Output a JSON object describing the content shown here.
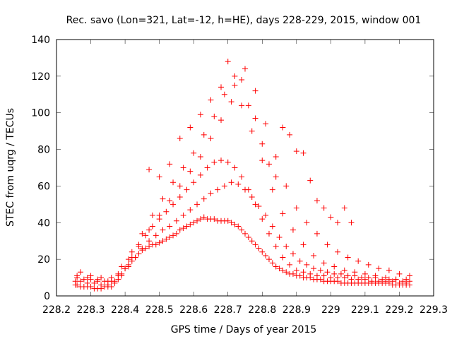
{
  "chart_data": {
    "type": "scatter",
    "title": "Rec. savo (Lon=321, Lat=-12, h=HE), days 228-229, 2015, window 001",
    "xlabel": "GPS time / Days of year 2015",
    "ylabel": "STEC from uqrg / TECUs",
    "xlim": [
      228.2,
      229.3
    ],
    "ylim": [
      0,
      140
    ],
    "xticks": [
      "228.2",
      "228.3",
      "228.4",
      "228.5",
      "228.6",
      "228.7",
      "228.8",
      "228.9",
      "229",
      "229.1",
      "229.2",
      "229.3"
    ],
    "yticks": [
      "0",
      "20",
      "40",
      "60",
      "80",
      "100",
      "120",
      "140"
    ],
    "grid": false,
    "legend": "none",
    "marker": "plus",
    "color": "#ff0000",
    "series": [
      {
        "x": [
          228.255,
          228.26,
          228.27,
          228.28,
          228.29,
          228.3,
          228.31,
          228.32,
          228.33,
          228.34,
          228.35,
          228.36,
          228.37,
          228.38,
          228.39,
          228.4,
          228.41,
          228.42,
          228.43,
          228.44,
          228.45,
          228.46,
          228.47,
          228.48,
          228.49,
          228.5,
          228.51,
          228.52,
          228.53,
          228.54,
          228.55,
          228.56,
          228.57,
          228.58,
          228.59,
          228.6,
          228.61,
          228.62,
          228.63,
          228.64,
          228.65,
          228.66,
          228.67,
          228.68,
          228.69,
          228.7,
          228.71,
          228.72,
          228.73,
          228.74,
          228.75,
          228.76,
          228.77,
          228.78,
          228.79,
          228.8,
          228.81,
          228.82,
          228.83,
          228.84,
          228.85,
          228.86,
          228.87,
          228.88,
          228.89,
          228.9,
          228.91,
          228.92,
          228.93,
          228.94,
          228.95,
          228.96,
          228.97,
          228.98,
          228.99,
          229.0,
          229.01,
          229.02,
          229.03,
          229.04,
          229.05,
          229.06,
          229.07,
          229.08,
          229.09,
          229.1,
          229.11,
          229.12,
          229.13,
          229.14,
          229.15,
          229.16,
          229.17,
          229.18,
          229.19,
          229.2,
          229.21,
          229.22,
          229.23
        ],
        "y": [
          6,
          6,
          5,
          5,
          5,
          5,
          4,
          4,
          4,
          5,
          5,
          5,
          7,
          9,
          12,
          15,
          17,
          19,
          21,
          23,
          25,
          26,
          27,
          28,
          28,
          29,
          30,
          31,
          32,
          33,
          34,
          36,
          37,
          38,
          39,
          40,
          41,
          42,
          43,
          42,
          42,
          42,
          41,
          41,
          41,
          41,
          40,
          39,
          38,
          36,
          34,
          32,
          30,
          28,
          26,
          24,
          22,
          20,
          18,
          16,
          15,
          14,
          13,
          12,
          12,
          11,
          11,
          10,
          10,
          10,
          9,
          9,
          9,
          8,
          8,
          8,
          8,
          8,
          7,
          7,
          7,
          7,
          7,
          7,
          7,
          7,
          7,
          7,
          7,
          7,
          7,
          7,
          7,
          6,
          6,
          6,
          6,
          6,
          6
        ]
      },
      {
        "x": [
          228.255,
          228.27,
          228.29,
          228.31,
          228.33,
          228.35,
          228.37,
          228.39,
          228.41,
          228.43,
          228.45,
          228.47,
          228.49,
          228.51,
          228.53,
          228.55,
          228.57,
          228.59,
          228.61,
          228.63,
          228.65,
          228.67,
          228.69,
          228.71,
          228.73,
          228.75,
          228.77,
          228.79,
          228.81,
          228.83,
          228.85,
          228.87,
          228.89,
          228.91,
          228.93,
          228.95,
          228.97,
          228.99,
          229.01,
          229.03,
          229.05,
          229.07,
          229.09,
          229.11,
          229.13,
          229.15,
          229.17,
          229.19,
          229.21,
          229.23
        ],
        "y": [
          8,
          8,
          7,
          7,
          6,
          6,
          8,
          11,
          16,
          21,
          26,
          30,
          33,
          36,
          38,
          41,
          44,
          47,
          50,
          53,
          56,
          58,
          60,
          62,
          61,
          58,
          54,
          49,
          44,
          38,
          32,
          27,
          23,
          19,
          17,
          15,
          14,
          13,
          12,
          12,
          11,
          11,
          10,
          10,
          10,
          9,
          9,
          9,
          8,
          8
        ]
      },
      {
        "x": [
          228.26,
          228.28,
          228.3,
          228.32,
          228.34,
          228.36,
          228.38,
          228.4,
          228.42,
          228.44,
          228.46,
          228.48,
          228.5,
          228.52,
          228.54,
          228.56,
          228.58,
          228.6,
          228.62,
          228.64,
          228.66,
          228.68,
          228.7,
          228.72,
          228.74,
          228.76,
          228.78,
          228.8,
          228.82,
          228.84,
          228.86,
          228.88,
          228.9,
          228.92,
          228.94,
          228.96,
          228.98,
          229.0,
          229.02,
          229.04,
          229.06,
          229.08,
          229.1,
          229.12,
          229.14,
          229.16,
          229.18,
          229.2,
          229.22
        ],
        "y": [
          10,
          9,
          9,
          8,
          8,
          8,
          11,
          15,
          21,
          27,
          33,
          38,
          42,
          46,
          50,
          54,
          58,
          62,
          66,
          70,
          73,
          74,
          73,
          70,
          65,
          58,
          50,
          42,
          34,
          27,
          21,
          17,
          14,
          13,
          12,
          11,
          11,
          10,
          10,
          10,
          9,
          9,
          9,
          8,
          8,
          8,
          8,
          7,
          7
        ]
      },
      {
        "x": [
          228.26,
          228.29,
          228.32,
          228.35,
          228.38,
          228.41,
          228.44,
          228.47,
          228.5,
          228.53,
          228.56,
          228.59,
          228.62,
          228.65,
          228.68,
          228.71,
          228.74,
          228.77,
          228.8,
          228.83,
          228.86,
          228.89,
          228.92,
          228.95,
          228.98,
          229.01,
          229.04,
          229.07,
          229.1,
          229.13,
          229.16,
          229.19,
          229.22
        ],
        "y": [
          11,
          10,
          9,
          8,
          12,
          20,
          28,
          36,
          44,
          52,
          60,
          68,
          76,
          86,
          96,
          106,
          104,
          90,
          74,
          58,
          45,
          36,
          28,
          22,
          18,
          16,
          14,
          13,
          12,
          11,
          10,
          9,
          9
        ]
      },
      {
        "x": [
          228.27,
          228.3,
          228.33,
          228.36,
          228.39,
          228.42,
          228.45,
          228.48,
          228.51,
          228.54,
          228.57,
          228.6,
          228.63,
          228.66,
          228.69,
          228.72,
          228.75,
          228.78,
          228.81,
          228.84,
          228.87,
          228.9,
          228.93,
          228.96,
          228.99,
          229.02,
          229.05,
          229.08,
          229.11,
          229.14,
          229.17,
          229.2,
          229.23
        ],
        "y": [
          13,
          11,
          10,
          10,
          16,
          24,
          34,
          44,
          53,
          62,
          70,
          78,
          88,
          98,
          110,
          120,
          124,
          112,
          94,
          76,
          60,
          48,
          40,
          34,
          28,
          24,
          21,
          19,
          17,
          15,
          14,
          12,
          11
        ]
      },
      {
        "x": [
          228.47,
          228.5,
          228.53,
          228.56,
          228.59,
          228.62,
          228.65,
          228.68,
          228.7,
          228.72,
          228.74,
          228.76,
          228.78,
          228.8,
          228.82,
          228.84,
          228.86,
          228.88,
          228.9,
          228.92,
          228.94,
          228.96,
          228.98,
          229.0,
          229.02,
          229.04,
          229.06
        ],
        "y": [
          69,
          65,
          72,
          86,
          92,
          99,
          107,
          114,
          128,
          115,
          118,
          104,
          97,
          83,
          72,
          65,
          92,
          88,
          79,
          78,
          63,
          52,
          48,
          43,
          40,
          48,
          40
        ]
      }
    ]
  }
}
